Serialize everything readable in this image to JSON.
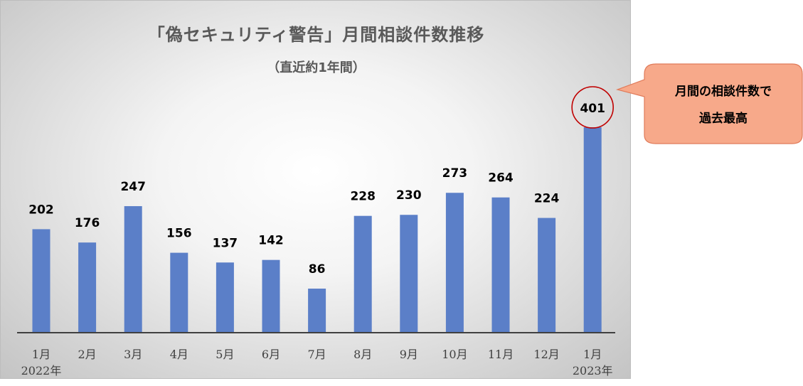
{
  "chart_data": {
    "type": "bar",
    "title": "「偽セキュリティ警告」月間相談件数推移",
    "subtitle": "（直近約1年間）",
    "categories": [
      "1月",
      "2月",
      "3月",
      "4月",
      "5月",
      "6月",
      "7月",
      "8月",
      "9月",
      "10月",
      "11月",
      "12月",
      "1月"
    ],
    "year_labels": [
      "2022年",
      "",
      "",
      "",
      "",
      "",
      "",
      "",
      "",
      "",
      "",
      "",
      "2023年"
    ],
    "values": [
      202,
      176,
      247,
      156,
      137,
      142,
      86,
      228,
      230,
      273,
      264,
      224,
      401
    ],
    "ylim": [
      0,
      401
    ],
    "grid": false,
    "highlighted_index": 12,
    "callout": {
      "line1": "月間の相談件数で",
      "line2": "過去最高"
    },
    "colors": {
      "bar": "#5b7fc8",
      "highlight_circle": "#c00000",
      "callout_fill": "#f7a98a",
      "callout_border": "#e07b5a",
      "axis": "#404040"
    }
  }
}
